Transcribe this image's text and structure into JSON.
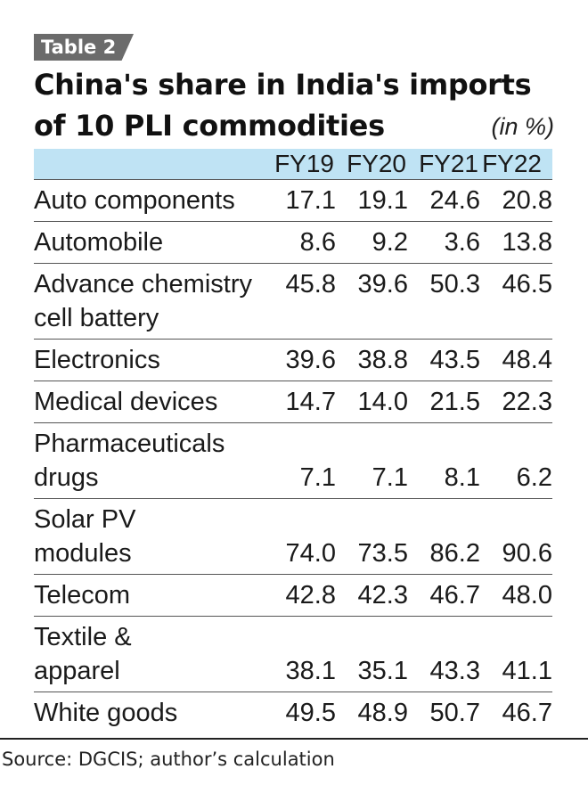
{
  "tag": "Table 2",
  "title_line1": "China's share in India's imports",
  "title_line2": "of 10 PLI commodities",
  "unit": "(in %)",
  "columns": [
    "FY19",
    "FY20",
    "FY21",
    "FY22"
  ],
  "rows": [
    {
      "name": "Auto components",
      "values": [
        "17.1",
        "19.1",
        "24.6",
        "20.8"
      ]
    },
    {
      "name": "Automobile",
      "values": [
        "8.6",
        "9.2",
        "3.6",
        "13.8"
      ]
    },
    {
      "name": "Advance chemistry cell battery",
      "values": [
        "45.8",
        "39.6",
        "50.3",
        "46.5"
      ]
    },
    {
      "name": "Electronics",
      "values": [
        "39.6",
        "38.8",
        "43.5",
        "48.4"
      ]
    },
    {
      "name": "Medical devices",
      "values": [
        "14.7",
        "14.0",
        "21.5",
        "22.3"
      ]
    },
    {
      "name": "Pharmaceuticals drugs",
      "values": [
        "7.1",
        "7.1",
        "8.1",
        "6.2"
      ]
    },
    {
      "name": "Solar PV modules",
      "values": [
        "74.0",
        "73.5",
        "86.2",
        "90.6"
      ]
    },
    {
      "name": "Telecom",
      "values": [
        "42.8",
        "42.3",
        "46.7",
        "48.0"
      ]
    },
    {
      "name": "Textile & apparel",
      "values": [
        "38.1",
        "35.1",
        "43.3",
        "41.1"
      ]
    },
    {
      "name": "White goods",
      "values": [
        "49.5",
        "48.9",
        "50.7",
        "46.7"
      ]
    }
  ],
  "source": "Source: DGCIS; author’s calculation",
  "colors": {
    "header_band": "#bfe3f4",
    "tag_bg": "#6b6b6b"
  }
}
